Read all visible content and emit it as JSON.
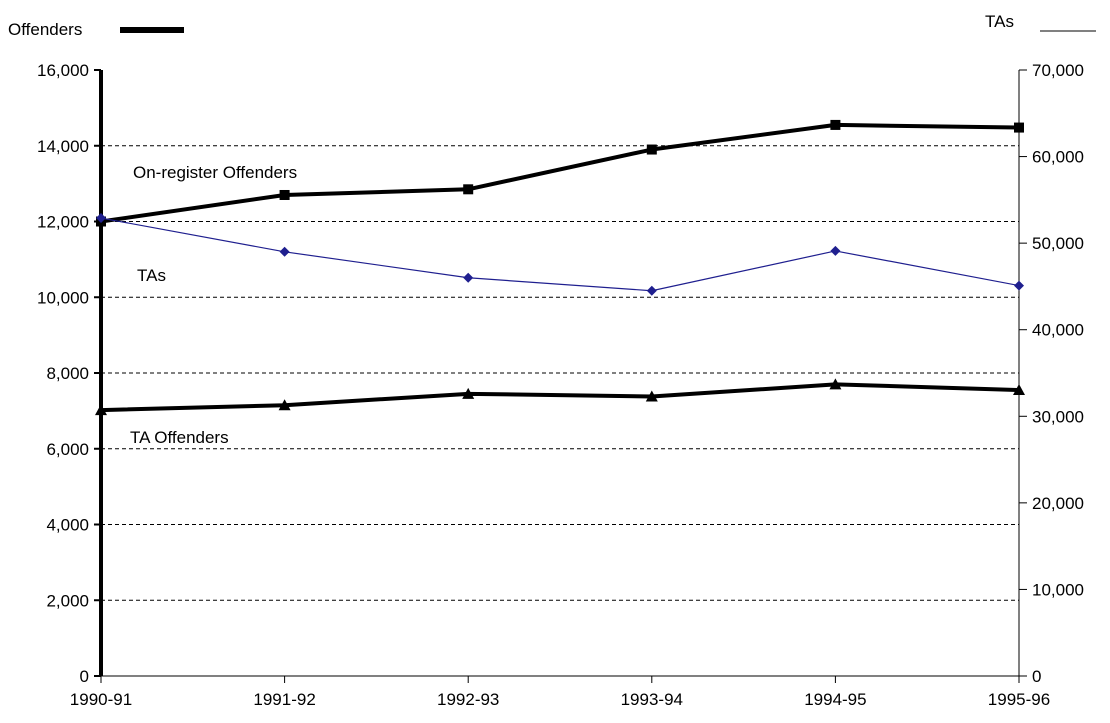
{
  "chart_data": {
    "type": "line",
    "categories": [
      "1990-91",
      "1991-92",
      "1992-93",
      "1993-94",
      "1994-95",
      "1995-96"
    ],
    "left_axis": {
      "title": "Offenders",
      "range": [
        0,
        16000
      ],
      "ticks": [
        "0",
        "2,000",
        "4,000",
        "6,000",
        "8,000",
        "10,000",
        "12,000",
        "14,000",
        "16,000"
      ]
    },
    "right_axis": {
      "title": "TAs",
      "range": [
        0,
        70000
      ],
      "ticks": [
        "0",
        "10,000",
        "20,000",
        "30,000",
        "40,000",
        "50,000",
        "60,000",
        "70,000"
      ]
    },
    "grid": "dashed horizontal at left-axis major ticks",
    "series": [
      {
        "name": "On-register Offenders",
        "axis": "left",
        "values": [
          12000,
          12700,
          12850,
          13900,
          14550,
          14480
        ],
        "marker": "square",
        "color": "#000000"
      },
      {
        "name": "TAs",
        "axis": "right",
        "values": [
          52900,
          49000,
          46000,
          44500,
          49100,
          45100
        ],
        "marker": "diamond",
        "color": "#1f1f8f"
      },
      {
        "name": "TA Offenders",
        "axis": "left",
        "values": [
          7020,
          7150,
          7450,
          7380,
          7700,
          7550
        ],
        "marker": "triangle",
        "color": "#000000"
      }
    ]
  }
}
